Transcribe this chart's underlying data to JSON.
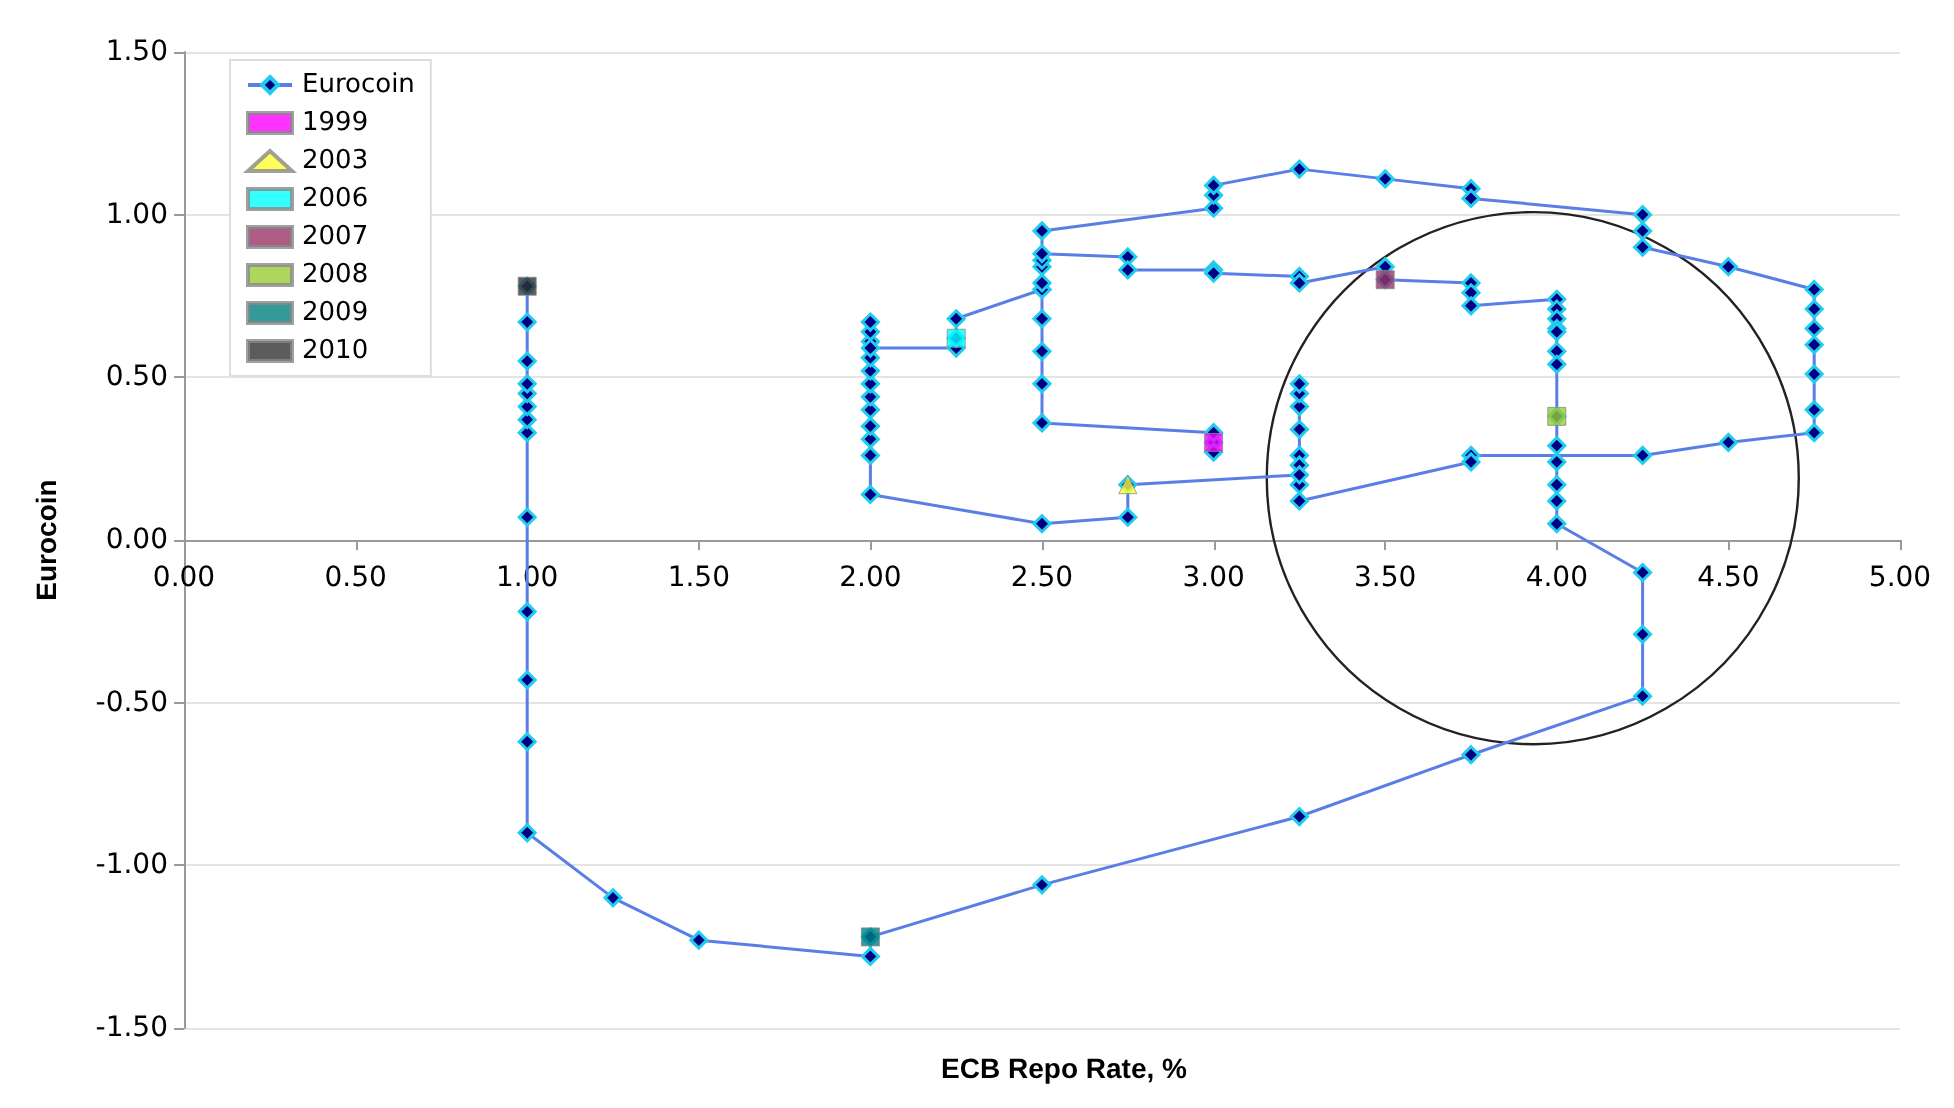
{
  "chart_data": {
    "type": "line",
    "xlabel": "ECB Repo Rate, %",
    "ylabel": "Eurocoin",
    "xlim": [
      0,
      5
    ],
    "ylim": [
      -1.5,
      1.5
    ],
    "xticks": [
      {
        "value": 0,
        "label": "0.00"
      },
      {
        "value": 0.5,
        "label": "0.50"
      },
      {
        "value": 1,
        "label": "1.00"
      },
      {
        "value": 1.5,
        "label": "1.50"
      },
      {
        "value": 2,
        "label": "2.00"
      },
      {
        "value": 2.5,
        "label": "2.50"
      },
      {
        "value": 3,
        "label": "3.00"
      },
      {
        "value": 3.5,
        "label": "3.50"
      },
      {
        "value": 4,
        "label": "4.00"
      },
      {
        "value": 4.5,
        "label": "4.50"
      },
      {
        "value": 5,
        "label": "5.00"
      }
    ],
    "yticks": [
      {
        "value": -1.5,
        "label": "-1.50"
      },
      {
        "value": -1,
        "label": "-1.00"
      },
      {
        "value": -0.5,
        "label": "-0.50"
      },
      {
        "value": 0,
        "label": "0.00"
      },
      {
        "value": 0.5,
        "label": "0.50"
      },
      {
        "value": 1,
        "label": "1.00"
      },
      {
        "value": 1.5,
        "label": "1.50"
      }
    ],
    "grid": "y",
    "legend": "top left",
    "series": [
      {
        "name": "Eurocoin",
        "color": "#5b7ee6",
        "marker": "diamond",
        "line_style": "solid",
        "x": [
          3,
          3,
          3,
          2.5,
          2.5,
          2.5,
          2.5,
          2.5,
          2.5,
          2.5,
          3,
          3,
          3,
          3.25,
          3.5,
          3.75,
          3.75,
          4.25,
          4.25,
          4.25,
          4.5,
          4.75,
          4.75,
          4.75,
          4.75,
          4.75,
          4.75,
          4.75,
          4.5,
          4.25,
          3.75,
          3.75,
          3.25,
          3.25,
          3.25,
          3.25,
          3.25,
          3.25,
          3.25,
          3.25,
          3.25,
          2.75,
          2.75,
          2.5,
          2,
          2,
          2,
          2,
          2,
          2,
          2,
          2,
          2,
          2,
          2,
          2,
          2,
          2.25,
          2.25,
          2.25,
          2.5,
          2.5,
          2.5,
          2.5,
          2.75,
          2.75,
          3,
          3,
          3.25,
          3.25,
          3.5,
          3.5,
          3.75,
          3.75,
          3.75,
          4,
          4,
          4,
          4,
          4,
          4,
          4,
          4,
          4,
          4,
          4,
          4,
          4,
          4.25,
          4.25,
          4.25,
          3.75,
          3.25,
          2.5,
          2,
          2,
          1.5,
          1.25,
          1,
          1,
          1,
          1,
          1,
          1,
          1,
          1,
          1,
          1,
          1,
          1,
          1
        ],
        "values": [
          0.3,
          0.27,
          0.33,
          0.36,
          0.48,
          0.58,
          0.68,
          0.77,
          0.84,
          0.95,
          1.02,
          1.06,
          1.09,
          1.14,
          1.11,
          1.08,
          1.05,
          1,
          0.95,
          0.9,
          0.84,
          0.77,
          0.71,
          0.65,
          0.6,
          0.51,
          0.4,
          0.33,
          0.3,
          0.26,
          0.26,
          0.24,
          0.12,
          0.17,
          0.26,
          0.34,
          0.41,
          0.45,
          0.48,
          0.23,
          0.2,
          0.17,
          0.07,
          0.05,
          0.14,
          0.26,
          0.31,
          0.35,
          0.4,
          0.44,
          0.48,
          0.52,
          0.56,
          0.61,
          0.64,
          0.67,
          0.59,
          0.59,
          0.62,
          0.68,
          0.77,
          0.79,
          0.86,
          0.88,
          0.87,
          0.83,
          0.83,
          0.82,
          0.81,
          0.79,
          0.84,
          0.8,
          0.79,
          0.76,
          0.72,
          0.74,
          0.71,
          0.68,
          0.65,
          0.64,
          0.58,
          0.54,
          0.38,
          0.29,
          0.24,
          0.17,
          0.12,
          0.05,
          -0.1,
          -0.29,
          -0.48,
          -0.66,
          -0.85,
          -1.06,
          -1.22,
          -1.28,
          -1.23,
          -1.1,
          -0.9,
          -0.62,
          -0.43,
          -0.22,
          0.07,
          0.33,
          0.37,
          0.41,
          0.45,
          0.48,
          0.55,
          0.67,
          0.78
        ]
      },
      {
        "name": "1999",
        "type": "scatter",
        "color": "#ff00ff",
        "marker": "square",
        "x": [
          3
        ],
        "values": [
          0.3
        ]
      },
      {
        "name": "2003",
        "type": "scatter",
        "color": "#ffff33",
        "marker": "triangle",
        "x": [
          2.75
        ],
        "values": [
          0.17
        ]
      },
      {
        "name": "2006",
        "type": "scatter",
        "color": "#00ffff",
        "marker": "square",
        "x": [
          2.25
        ],
        "values": [
          0.62
        ]
      },
      {
        "name": "2007",
        "type": "scatter",
        "color": "#993366",
        "marker": "square",
        "x": [
          3.5
        ],
        "values": [
          0.8
        ]
      },
      {
        "name": "2008",
        "type": "scatter",
        "color": "#99cc33",
        "marker": "square",
        "x": [
          4
        ],
        "values": [
          0.38
        ]
      },
      {
        "name": "2009",
        "type": "scatter",
        "color": "#008080",
        "marker": "square",
        "x": [
          2
        ],
        "values": [
          -1.22
        ]
      },
      {
        "name": "2010",
        "type": "scatter",
        "color": "#333333",
        "marker": "square",
        "x": [
          1
        ],
        "values": [
          0.78
        ]
      }
    ]
  }
}
